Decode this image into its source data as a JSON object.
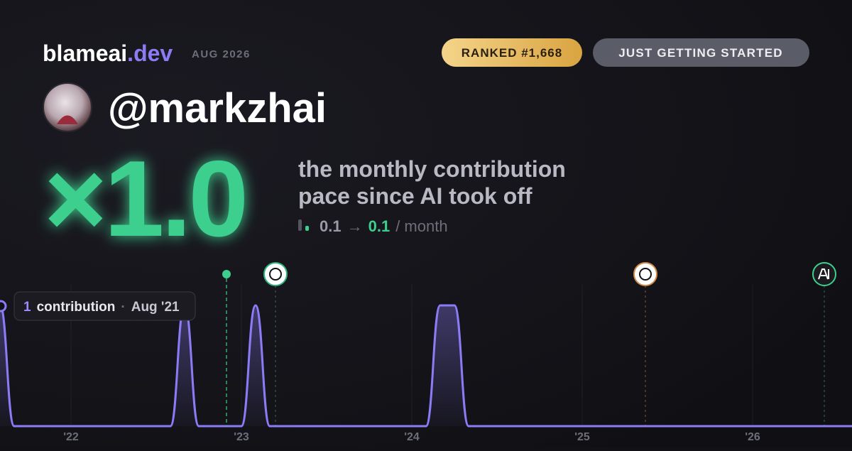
{
  "header": {
    "brand": "blameai",
    "brand_tld": ".dev",
    "period": "AUG 2026",
    "rank": "RANKED #1,668",
    "status": "JUST GETTING STARTED",
    "handle": "@markzhai"
  },
  "headline": {
    "multiplier": "×1.0",
    "caption_lines": [
      "the monthly contribution",
      "pace since AI took off"
    ],
    "before": "0.1",
    "arrow": "→",
    "after": "0.1",
    "unit": "/ month"
  },
  "tooltip": {
    "value": "1",
    "label": "contribution",
    "separator": "·",
    "date": "Aug '21"
  },
  "chart_data": {
    "type": "line",
    "color": "#8b7cf6",
    "x": [
      "2021-08",
      "2021-09",
      "2021-10",
      "2021-11",
      "2021-12",
      "2022-01",
      "2022-02",
      "2022-03",
      "2022-04",
      "2022-05",
      "2022-06",
      "2022-07",
      "2022-08",
      "2022-09",
      "2022-10",
      "2022-11",
      "2022-12",
      "2023-01",
      "2023-02",
      "2023-03",
      "2023-04",
      "2023-05",
      "2023-06",
      "2023-07",
      "2023-08",
      "2023-09",
      "2023-10",
      "2023-11",
      "2023-12",
      "2024-01",
      "2024-02",
      "2024-03",
      "2024-04",
      "2024-05",
      "2024-06",
      "2024-07",
      "2024-08",
      "2024-09",
      "2024-10",
      "2024-11",
      "2024-12",
      "2025-01",
      "2025-02",
      "2025-03",
      "2025-04",
      "2025-05",
      "2025-06",
      "2025-07",
      "2025-08",
      "2025-09",
      "2025-10",
      "2025-11",
      "2025-12",
      "2026-01",
      "2026-02",
      "2026-03",
      "2026-04",
      "2026-05",
      "2026-06",
      "2026-07",
      "2026-08"
    ],
    "values": [
      1,
      0,
      0,
      0,
      0,
      0,
      0,
      0,
      0,
      0,
      0,
      0,
      0,
      1,
      0,
      0,
      0,
      0,
      1,
      0,
      0,
      0,
      0,
      0,
      0,
      0,
      0,
      0,
      0,
      0,
      0,
      1,
      1,
      0,
      0,
      0,
      0,
      0,
      0,
      0,
      0,
      0,
      0,
      0,
      0,
      0,
      0,
      0,
      0,
      0,
      0,
      0,
      0,
      0,
      0,
      0,
      0,
      0,
      0,
      0,
      0
    ],
    "xlim": [
      "2021-08",
      "2026-08"
    ],
    "xticks": [
      {
        "value": "2022-01",
        "label": "'22"
      },
      {
        "value": "2023-01",
        "label": "'23"
      },
      {
        "value": "2024-01",
        "label": "'24"
      },
      {
        "value": "2025-01",
        "label": "'25"
      },
      {
        "value": "2026-01",
        "label": "'26"
      }
    ],
    "ylim": [
      0,
      1
    ],
    "grid": true
  }
}
